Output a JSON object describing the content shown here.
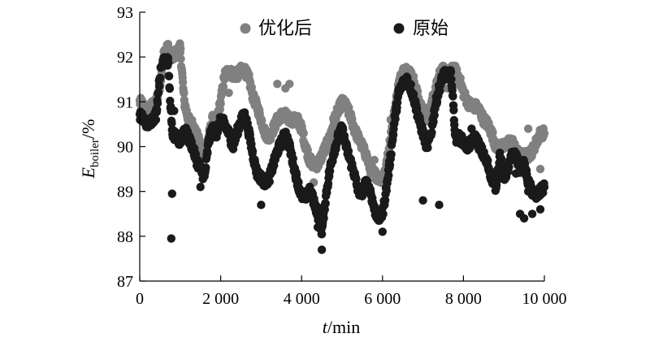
{
  "chart_data": {
    "type": "scatter",
    "title": "",
    "xlabel": {
      "var": "t",
      "rest": "/min"
    },
    "ylabel": {
      "var": "E",
      "sub": "boiler",
      "rest": "/%"
    },
    "xlim": [
      0,
      10000
    ],
    "ylim": [
      87,
      93
    ],
    "xticks": [
      0,
      2000,
      4000,
      6000,
      8000,
      10000
    ],
    "xtick_labels": [
      "0",
      "2 000",
      "4 000",
      "6 000",
      "8 000",
      "10 000"
    ],
    "yticks": [
      87,
      88,
      89,
      90,
      91,
      92,
      93
    ],
    "ytick_labels": [
      "87",
      "88",
      "89",
      "90",
      "91",
      "92",
      "93"
    ],
    "grid": false,
    "legend_position": "top",
    "series": [
      {
        "name": "优化后",
        "color": "#808080",
        "x": [
          0,
          100,
          200,
          300,
          400,
          500,
          600,
          700,
          800,
          900,
          1000,
          1100,
          1200,
          1300,
          1400,
          1500,
          1600,
          1700,
          1800,
          1900,
          2000,
          2100,
          2200,
          2300,
          2400,
          2500,
          2600,
          2700,
          2800,
          2900,
          3000,
          3100,
          3200,
          3300,
          3400,
          3500,
          3600,
          3700,
          3800,
          3900,
          4000,
          4100,
          4200,
          4300,
          4400,
          4500,
          4600,
          4700,
          4800,
          4900,
          5000,
          5100,
          5200,
          5300,
          5400,
          5500,
          5600,
          5700,
          5800,
          5900,
          6000,
          6100,
          6200,
          6300,
          6400,
          6500,
          6600,
          6700,
          6800,
          6900,
          7000,
          7100,
          7200,
          7300,
          7400,
          7500,
          7600,
          7700,
          7800,
          7900,
          8000,
          8100,
          8200,
          8300,
          8400,
          8500,
          8600,
          8700,
          8800,
          8900,
          9000,
          9100,
          9200,
          9300,
          9400,
          9500,
          9600,
          9700,
          9800,
          9900,
          10000
        ],
        "y": [
          91.0,
          90.9,
          90.8,
          90.9,
          91.0,
          91.4,
          92.1,
          92.2,
          92.0,
          92.1,
          92.2,
          91.0,
          90.6,
          90.5,
          90.3,
          90.0,
          89.8,
          90.2,
          90.6,
          90.6,
          91.0,
          91.6,
          91.7,
          91.6,
          91.6,
          91.7,
          91.7,
          91.5,
          91.1,
          90.9,
          90.6,
          90.3,
          90.2,
          90.4,
          90.6,
          90.7,
          90.7,
          90.6,
          90.6,
          90.6,
          90.4,
          90.0,
          89.7,
          89.6,
          89.6,
          89.8,
          90.0,
          90.2,
          90.6,
          90.8,
          91.0,
          90.9,
          90.7,
          90.4,
          90.2,
          90.0,
          89.8,
          89.5,
          89.4,
          89.3,
          89.3,
          89.6,
          90.2,
          90.8,
          91.4,
          91.7,
          91.7,
          91.6,
          91.4,
          91.0,
          90.8,
          90.6,
          90.9,
          91.3,
          91.6,
          91.7,
          91.6,
          91.7,
          91.7,
          91.5,
          91.2,
          91.0,
          90.9,
          90.9,
          90.8,
          90.6,
          90.5,
          90.3,
          90.0,
          90.0,
          90.0,
          90.1,
          90.1,
          89.9,
          89.8,
          89.8,
          89.8,
          89.9,
          90.1,
          90.3,
          90.3
        ],
        "scatter": [
          [
            700,
            91.9
          ],
          [
            1000,
            92.1
          ],
          [
            2200,
            91.2
          ],
          [
            3400,
            91.4
          ],
          [
            3600,
            91.3
          ],
          [
            3700,
            91.4
          ],
          [
            4300,
            89.2
          ],
          [
            5800,
            89.7
          ],
          [
            6200,
            90.6
          ],
          [
            7400,
            91.4
          ],
          [
            7600,
            91.3
          ],
          [
            9600,
            90.4
          ],
          [
            9900,
            89.5
          ]
        ]
      },
      {
        "name": "原始",
        "color": "#1a1a1a",
        "x": [
          0,
          100,
          200,
          300,
          400,
          500,
          600,
          700,
          800,
          900,
          1000,
          1100,
          1200,
          1300,
          1400,
          1500,
          1600,
          1700,
          1800,
          1900,
          2000,
          2100,
          2200,
          2300,
          2400,
          2500,
          2600,
          2700,
          2800,
          2900,
          3000,
          3100,
          3200,
          3300,
          3400,
          3500,
          3600,
          3700,
          3800,
          3900,
          4000,
          4100,
          4200,
          4300,
          4400,
          4500,
          4600,
          4700,
          4800,
          4900,
          5000,
          5100,
          5200,
          5300,
          5400,
          5500,
          5600,
          5700,
          5800,
          5900,
          6000,
          6100,
          6200,
          6300,
          6400,
          6500,
          6600,
          6700,
          6800,
          6900,
          7000,
          7100,
          7200,
          7300,
          7400,
          7500,
          7600,
          7700,
          7800,
          7900,
          8000,
          8100,
          8200,
          8300,
          8400,
          8500,
          8600,
          8700,
          8800,
          8900,
          9000,
          9100,
          9200,
          9300,
          9400,
          9500,
          9600,
          9700,
          9800,
          9900,
          10000
        ],
        "y": [
          90.7,
          90.6,
          90.5,
          90.6,
          90.7,
          91.6,
          92.0,
          91.9,
          90.3,
          90.2,
          90.1,
          90.4,
          90.2,
          90.0,
          89.7,
          89.5,
          89.3,
          90.1,
          90.4,
          90.3,
          90.6,
          90.5,
          90.3,
          90.0,
          90.3,
          90.6,
          90.7,
          90.3,
          89.8,
          89.4,
          89.3,
          89.2,
          89.3,
          89.6,
          89.9,
          90.1,
          90.3,
          90.0,
          89.6,
          89.2,
          88.9,
          88.9,
          89.0,
          88.8,
          88.5,
          88.1,
          88.9,
          89.5,
          89.9,
          90.2,
          90.4,
          90.0,
          89.7,
          89.4,
          89.0,
          89.0,
          89.2,
          89.0,
          88.6,
          88.4,
          88.5,
          89.1,
          89.8,
          90.6,
          91.2,
          91.4,
          91.5,
          91.3,
          91.0,
          90.6,
          90.3,
          90.0,
          90.3,
          90.9,
          91.3,
          91.6,
          91.6,
          91.6,
          90.2,
          90.2,
          90.1,
          90.0,
          90.1,
          90.2,
          90.0,
          89.8,
          89.6,
          89.3,
          89.1,
          89.8,
          89.3,
          89.5,
          89.8,
          89.8,
          89.5,
          89.6,
          89.2,
          89.0,
          88.9,
          89.0,
          89.1
        ],
        "scatter": [
          [
            780,
            87.95
          ],
          [
            800,
            88.95
          ],
          [
            850,
            90.8
          ],
          [
            1500,
            89.1
          ],
          [
            3000,
            88.7
          ],
          [
            4500,
            87.7
          ],
          [
            4400,
            88.2
          ],
          [
            6000,
            88.1
          ],
          [
            7000,
            88.8
          ],
          [
            7400,
            88.7
          ],
          [
            8200,
            90.4
          ],
          [
            9300,
            89.4
          ],
          [
            9400,
            88.5
          ],
          [
            9500,
            88.4
          ],
          [
            9600,
            89.0
          ],
          [
            9700,
            88.5
          ],
          [
            9900,
            88.6
          ]
        ]
      }
    ]
  }
}
